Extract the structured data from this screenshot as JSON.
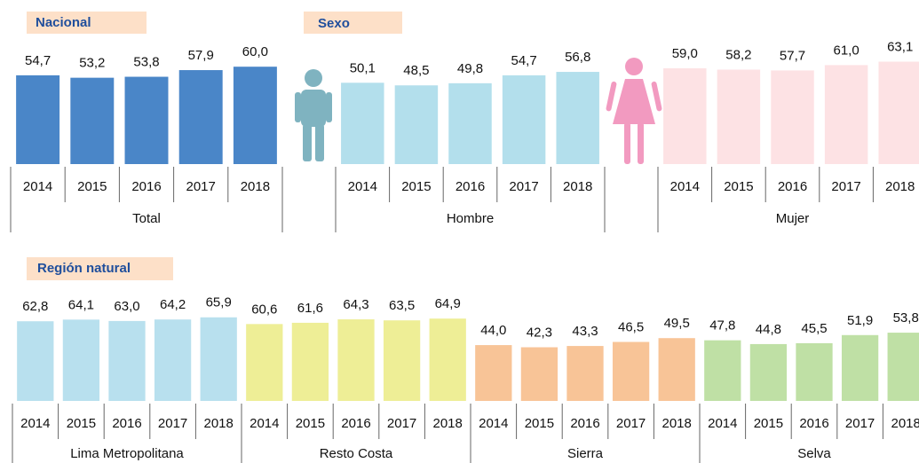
{
  "chart_data": [
    {
      "type": "bar",
      "title": "Nacional",
      "categories": [
        "2014",
        "2015",
        "2016",
        "2017",
        "2018"
      ],
      "series": [
        {
          "name": "Total",
          "color": "#4a86c8",
          "values": [
            54.7,
            53.2,
            53.8,
            57.9,
            60.0
          ],
          "value_labels": [
            "54,7",
            "53,2",
            "53,8",
            "57,9",
            "60,0"
          ]
        }
      ]
    },
    {
      "type": "bar",
      "title": "Sexo",
      "categories": [
        "2014",
        "2015",
        "2016",
        "2017",
        "2018"
      ],
      "series": [
        {
          "name": "Hombre",
          "color": "#b3dfec",
          "values": [
            50.1,
            48.5,
            49.8,
            54.7,
            56.8
          ],
          "value_labels": [
            "50,1",
            "48,5",
            "49,8",
            "54,7",
            "56,8"
          ]
        },
        {
          "name": "Mujer",
          "color": "#fde2e4",
          "values": [
            59.0,
            58.2,
            57.7,
            61.0,
            63.1
          ],
          "value_labels": [
            "59,0",
            "58,2",
            "57,7",
            "61,0",
            "63,1"
          ]
        }
      ]
    },
    {
      "type": "bar",
      "title": "Región natural",
      "categories": [
        "2014",
        "2015",
        "2016",
        "2017",
        "2018"
      ],
      "series": [
        {
          "name": "Lima Metropolitana",
          "color": "#b8e0ee",
          "values": [
            62.8,
            64.1,
            63.0,
            64.2,
            65.9
          ],
          "value_labels": [
            "62,8",
            "64,1",
            "63,0",
            "64,2",
            "65,9"
          ]
        },
        {
          "name": "Resto Costa",
          "color": "#eeee96",
          "values": [
            60.6,
            61.6,
            64.3,
            63.5,
            64.9
          ],
          "value_labels": [
            "60,6",
            "61,6",
            "64,3",
            "63,5",
            "64,9"
          ]
        },
        {
          "name": "Sierra",
          "color": "#f8c497",
          "values": [
            44.0,
            42.3,
            43.3,
            46.5,
            49.5
          ],
          "value_labels": [
            "44,0",
            "42,3",
            "43,3",
            "46,5",
            "49,5"
          ]
        },
        {
          "name": "Selva",
          "color": "#bfe0a5",
          "values": [
            47.8,
            44.8,
            45.5,
            51.9,
            53.8
          ],
          "value_labels": [
            "47,8",
            "44,8",
            "45,5",
            "51,9",
            "53,8"
          ]
        }
      ]
    }
  ]
}
